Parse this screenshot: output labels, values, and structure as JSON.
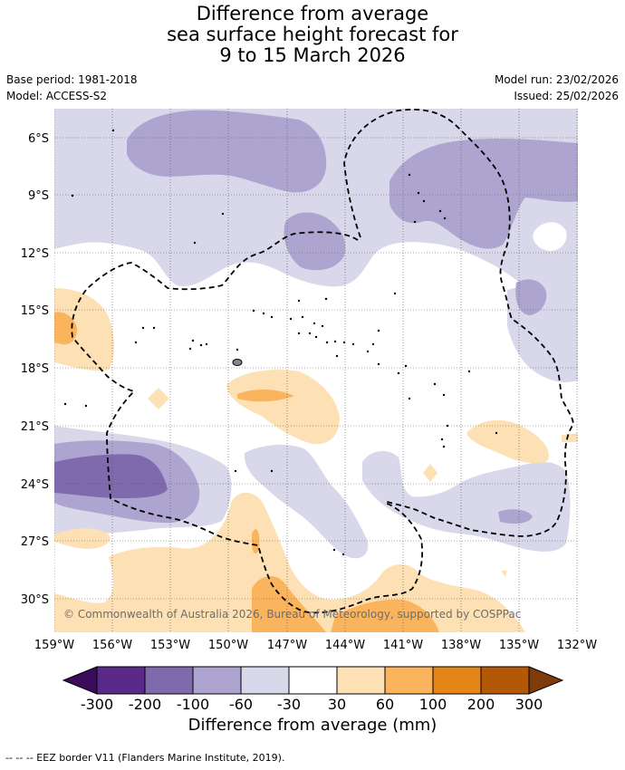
{
  "title": {
    "line1": "Difference from average",
    "line2": "sea surface height forecast for",
    "line3": "9 to 15 March 2026"
  },
  "meta": {
    "base_period": "Base period: 1981-2018",
    "model": "Model: ACCESS-S2",
    "model_run": "Model run: 23/02/2026",
    "issued": "Issued: 25/02/2026"
  },
  "copyright": "© Commonwealth of Australia 2026, Bureau of Meteorology, supported by COSPPac",
  "axes": {
    "lat_labels": [
      "6°S",
      "9°S",
      "12°S",
      "15°S",
      "18°S",
      "21°S",
      "24°S",
      "27°S",
      "30°S"
    ],
    "lon_labels": [
      "159°W",
      "156°W",
      "153°W",
      "150°W",
      "147°W",
      "144°W",
      "141°W",
      "138°W",
      "135°W",
      "132°W"
    ]
  },
  "colorbar": {
    "title": "Difference from average (mm)",
    "tick_labels": [
      "-300",
      "-200",
      "-100",
      "-60",
      "-30",
      "30",
      "60",
      "100",
      "200",
      "300"
    ],
    "colors": [
      "#3b0c5a",
      "#5a2a88",
      "#7f6aad",
      "#ada5d0",
      "#d8d8ea",
      "#ffffff",
      "#fde0b4",
      "#fbb45e",
      "#e48617",
      "#b35807",
      "#7f3b08"
    ]
  },
  "colors": {
    "light_purple": "#d8d8ea",
    "mid_purple": "#ada5d0",
    "dark_purple": "#7f6aad",
    "light_orange": "#fde0b4",
    "mid_orange": "#fbb45e",
    "dark_orange": "#e48617"
  },
  "footer": "-- -- -- EEZ border V11 (Flanders Marine Institute, 2019)."
}
